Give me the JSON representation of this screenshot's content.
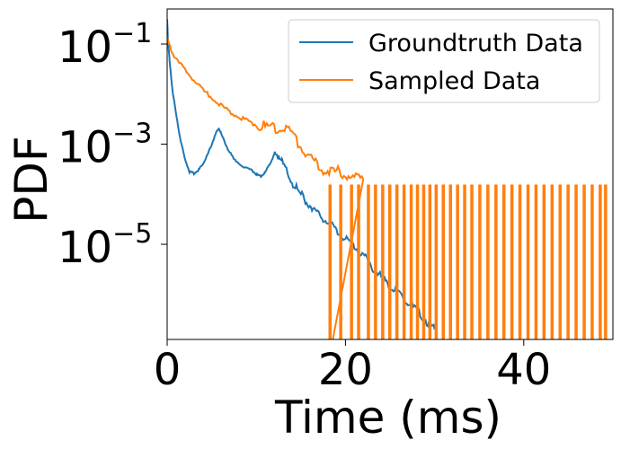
{
  "chart_data": {
    "type": "line",
    "title": "",
    "xlabel": "Time (ms)",
    "ylabel": "PDF",
    "xlim": [
      0,
      50
    ],
    "ylim_log10": [
      -6.9,
      -0.3
    ],
    "yscale": "log",
    "x_ticks": [
      {
        "value": 0,
        "label": "0"
      },
      {
        "value": 20,
        "label": "20"
      },
      {
        "value": 40,
        "label": "40"
      }
    ],
    "y_ticks": [
      {
        "exp": -1,
        "base": "10",
        "sup": "−1"
      },
      {
        "exp": -3,
        "base": "10",
        "sup": "−3"
      },
      {
        "exp": -5,
        "base": "10",
        "sup": "−5"
      }
    ],
    "grid": false,
    "legend_position": "top-right",
    "series": [
      {
        "name": "Groundtruth Data",
        "color": "#1f77b4",
        "points": [
          [
            0.0,
            0.3
          ],
          [
            0.1,
            0.12
          ],
          [
            0.3,
            0.04
          ],
          [
            0.6,
            0.012
          ],
          [
            1.0,
            0.004
          ],
          [
            1.5,
            0.0012
          ],
          [
            2.0,
            0.0005
          ],
          [
            2.5,
            0.00028
          ],
          [
            3.0,
            0.00026
          ],
          [
            3.5,
            0.0003
          ],
          [
            4.0,
            0.0004
          ],
          [
            4.5,
            0.0006
          ],
          [
            5.0,
            0.001
          ],
          [
            5.5,
            0.0017
          ],
          [
            5.8,
            0.0021
          ],
          [
            6.2,
            0.0014
          ],
          [
            6.8,
            0.0008
          ],
          [
            7.5,
            0.0005
          ],
          [
            8.5,
            0.00036
          ],
          [
            9.5,
            0.0003
          ],
          [
            10.0,
            0.00025
          ],
          [
            10.5,
            0.00023
          ],
          [
            11.0,
            0.00027
          ],
          [
            11.5,
            0.0004
          ],
          [
            12.0,
            0.0006
          ],
          [
            12.5,
            0.0006
          ],
          [
            13.0,
            0.0004
          ],
          [
            14.0,
            0.00017
          ],
          [
            15.0,
            0.0001
          ],
          [
            16.0,
            6e-05
          ],
          [
            17.0,
            4e-05
          ],
          [
            18.0,
            2.8e-05
          ],
          [
            19.0,
            1.9e-05
          ],
          [
            20.0,
            1.3e-05
          ],
          [
            21.0,
            9e-06
          ],
          [
            22.0,
            6e-06
          ],
          [
            23.0,
            3.5e-06
          ],
          [
            24.0,
            2.2e-06
          ],
          [
            25.0,
            1.5e-06
          ],
          [
            26.0,
            1e-06
          ],
          [
            27.0,
            7e-07
          ],
          [
            28.0,
            5e-07
          ],
          [
            29.0,
            3e-07
          ],
          [
            30.0,
            2e-07
          ]
        ]
      },
      {
        "name": "Sampled Data",
        "color": "#ff7f0e",
        "points": [
          [
            0.0,
            0.13
          ],
          [
            0.5,
            0.07
          ],
          [
            1.0,
            0.05
          ],
          [
            2.0,
            0.03
          ],
          [
            3.0,
            0.019
          ],
          [
            4.0,
            0.012
          ],
          [
            5.0,
            0.0085
          ],
          [
            6.0,
            0.006
          ],
          [
            7.0,
            0.0045
          ],
          [
            8.0,
            0.0035
          ],
          [
            9.0,
            0.0029
          ],
          [
            10.0,
            0.0024
          ],
          [
            11.0,
            0.0022
          ],
          [
            12.0,
            0.0022
          ],
          [
            13.0,
            0.0021
          ],
          [
            14.0,
            0.0016
          ],
          [
            15.0,
            0.0009
          ],
          [
            16.0,
            0.0005
          ],
          [
            17.0,
            0.00035
          ],
          [
            18.0,
            0.0003
          ],
          [
            19.0,
            0.00028
          ],
          [
            20.0,
            0.00027
          ],
          [
            21.0,
            0.0002
          ],
          [
            22.0,
            0.0002
          ]
        ],
        "sparse_value": 0.00015,
        "sparse_x": [
          18.2,
          19.4,
          20.6,
          21.4,
          22.5,
          23.3,
          24.1,
          24.9,
          25.7,
          26.5,
          27.3,
          28.0,
          28.7,
          29.4,
          30.1,
          30.9,
          31.7,
          32.5,
          33.3,
          34.1,
          35.0,
          35.9,
          36.8,
          37.7,
          38.6,
          39.5,
          40.4,
          41.3,
          42.2,
          43.1,
          44.0,
          44.9,
          45.8,
          46.7,
          47.6,
          48.5,
          49.1
        ]
      }
    ]
  }
}
